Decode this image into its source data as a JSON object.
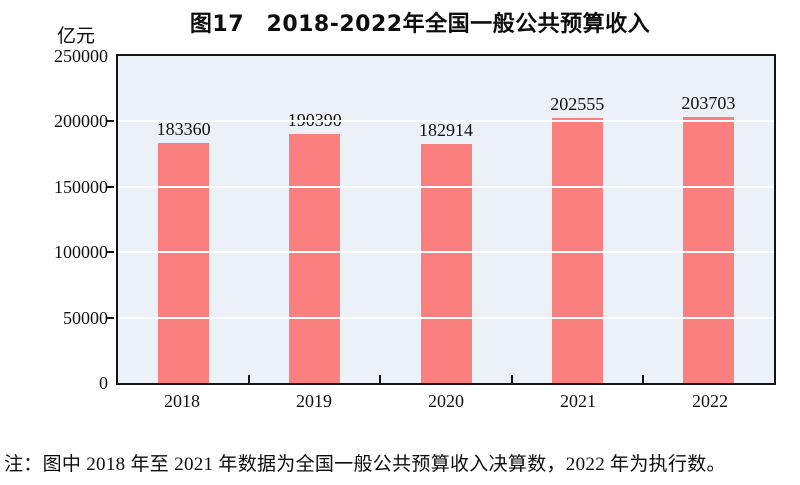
{
  "chart": {
    "title": "图17　2018-2022年全国一般公共预算收入",
    "unit_label": "亿元"
  },
  "chart_data": {
    "type": "bar",
    "title": "图17　2018-2022年全国一般公共预算收入",
    "ylabel": "亿元",
    "xlabel": "",
    "categories": [
      "2018",
      "2019",
      "2020",
      "2021",
      "2022"
    ],
    "values": [
      183360,
      190390,
      182914,
      202555,
      203703
    ],
    "value_labels_shown": true,
    "ylim": [
      0,
      250000
    ],
    "yticks": [
      0,
      50000,
      100000,
      150000,
      200000,
      250000
    ],
    "grid": true,
    "legend_position": "none",
    "colors": {
      "bar_fill": "#FA8080",
      "plot_background": "#EBF1F6",
      "gridline": "#FFFFFF",
      "axis": "#141414",
      "text": "#111111"
    }
  },
  "note": "注：图中 2018 年至 2021 年数据为全国一般公共预算收入决算数，2022 年为执行数。"
}
